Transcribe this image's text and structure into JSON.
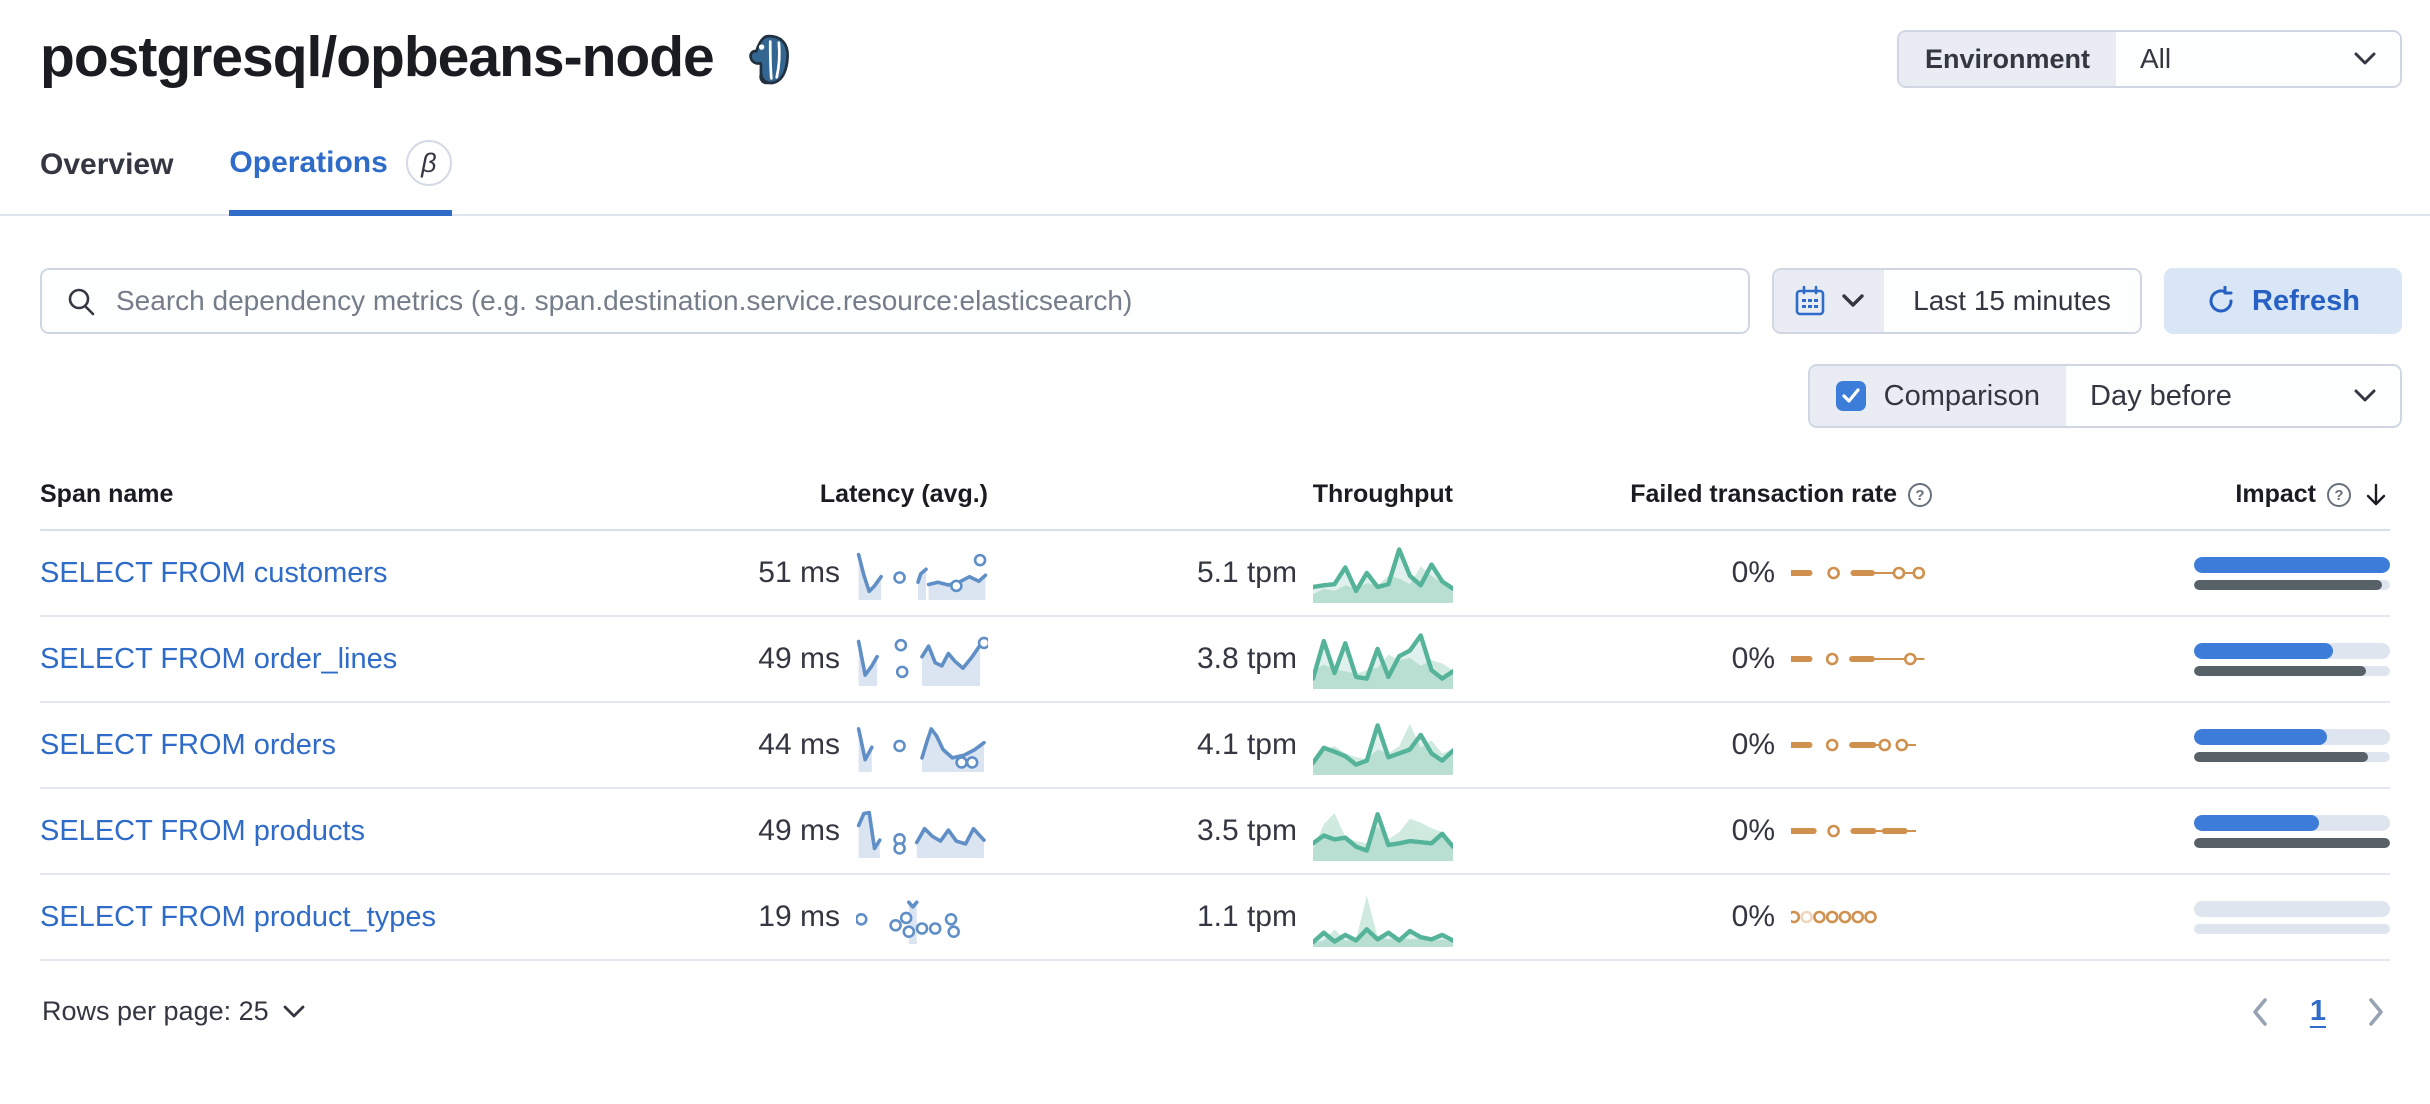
{
  "page": {
    "title": "postgresql/opbeans-node",
    "logo": "postgresql-elephant-icon"
  },
  "environment": {
    "label": "Environment",
    "value": "All"
  },
  "tabs": {
    "overview": "Overview",
    "operations": "Operations",
    "beta": "β"
  },
  "search": {
    "placeholder": "Search dependency metrics (e.g. span.destination.service.resource:elasticsearch)"
  },
  "time_picker": {
    "value": "Last 15 minutes",
    "refresh_label": "Refresh"
  },
  "comparison": {
    "label": "Comparison",
    "checked": true,
    "value": "Day before"
  },
  "table": {
    "headers": {
      "span": "Span name",
      "latency": "Latency (avg.)",
      "throughput": "Throughput",
      "failed": "Failed transaction rate",
      "impact": "Impact"
    },
    "rows": [
      {
        "span": "SELECT FROM customers",
        "latency": "51 ms",
        "throughput": "5.1 tpm",
        "failed": "0%",
        "impact": {
          "current": 1.0,
          "previous": 0.96
        },
        "sparks": {
          "latency": {
            "segments": [
              [
                [
                  0.02,
                  0.9
                ],
                [
                  0.06,
                  0.45
                ],
                [
                  0.1,
                  0.1
                ],
                [
                  0.14,
                  0.22
                ],
                [
                  0.19,
                  0.42
                ]
              ],
              [
                [
                  0.47,
                  0.3
                ],
                [
                  0.49,
                  0.48
                ],
                [
                  0.53,
                  0.58
                ]
              ],
              [
                [
                  0.55,
                  0.25
                ],
                [
                  0.62,
                  0.3
                ],
                [
                  0.7,
                  0.24
                ],
                [
                  0.78,
                  0.3
                ],
                [
                  0.86,
                  0.42
                ],
                [
                  0.93,
                  0.32
                ],
                [
                  0.98,
                  0.45
                ]
              ]
            ],
            "dots": [
              [
                0.33,
                0.4
              ],
              [
                0.76,
                0.22
              ],
              [
                0.94,
                0.78
              ]
            ]
          },
          "throughput": {
            "line": [
              0.25,
              0.28,
              0.3,
              0.6,
              0.18,
              0.5,
              0.25,
              0.3,
              0.92,
              0.45,
              0.28,
              0.65,
              0.35,
              0.22
            ],
            "comparison": [
              0.12,
              0.22,
              0.18,
              0.28,
              0.22,
              0.32,
              0.28,
              0.45,
              0.4,
              0.3,
              0.62,
              0.45,
              0.32,
              0.25
            ]
          },
          "failed": [
            {
              "t": "dash",
              "x0": 0.0,
              "x1": 0.13
            },
            {
              "t": "circle",
              "x": 0.3
            },
            {
              "t": "dash",
              "x0": 0.44,
              "x1": 0.57
            },
            {
              "t": "line",
              "x0": 0.57,
              "x1": 0.74
            },
            {
              "t": "circle",
              "x": 0.76
            },
            {
              "t": "line",
              "x0": 0.8,
              "x1": 0.87
            },
            {
              "t": "circle",
              "x": 0.9
            }
          ]
        }
      },
      {
        "span": "SELECT FROM order_lines",
        "latency": "49 ms",
        "throughput": "3.8 tpm",
        "failed": "0%",
        "impact": {
          "current": 0.71,
          "previous": 0.88
        },
        "sparks": {
          "latency": {
            "segments": [
              [
                [
                  0.02,
                  0.88
                ],
                [
                  0.07,
                  0.15
                ],
                [
                  0.12,
                  0.35
                ],
                [
                  0.16,
                  0.55
                ]
              ],
              [
                [
                  0.5,
                  0.55
                ],
                [
                  0.55,
                  0.78
                ],
                [
                  0.6,
                  0.42
                ],
                [
                  0.65,
                  0.35
                ],
                [
                  0.7,
                  0.62
                ],
                [
                  0.75,
                  0.45
                ],
                [
                  0.81,
                  0.3
                ],
                [
                  0.88,
                  0.55
                ],
                [
                  0.94,
                  0.8
                ]
              ]
            ],
            "dots": [
              [
                0.34,
                0.8
              ],
              [
                0.35,
                0.22
              ],
              [
                0.97,
                0.85
              ]
            ]
          },
          "throughput": {
            "line": [
              0.15,
              0.82,
              0.25,
              0.78,
              0.18,
              0.15,
              0.68,
              0.18,
              0.55,
              0.65,
              0.92,
              0.3,
              0.15,
              0.28
            ],
            "comparison": [
              0.28,
              0.4,
              0.32,
              0.28,
              0.24,
              0.3,
              0.35,
              0.58,
              0.48,
              0.52,
              0.38,
              0.48,
              0.42,
              0.3
            ]
          },
          "failed": [
            {
              "t": "dash",
              "x0": 0.0,
              "x1": 0.13
            },
            {
              "t": "circle",
              "x": 0.29
            },
            {
              "t": "dash",
              "x0": 0.43,
              "x1": 0.57
            },
            {
              "t": "line",
              "x0": 0.57,
              "x1": 0.82
            },
            {
              "t": "circle",
              "x": 0.84
            },
            {
              "t": "line",
              "x0": 0.88,
              "x1": 0.94
            }
          ]
        }
      },
      {
        "span": "SELECT FROM orders",
        "latency": "44 ms",
        "throughput": "4.1 tpm",
        "failed": "0%",
        "impact": {
          "current": 0.68,
          "previous": 0.89
        },
        "sparks": {
          "latency": {
            "segments": [
              [
                [
                  0.02,
                  0.85
                ],
                [
                  0.07,
                  0.18
                ],
                [
                  0.12,
                  0.45
                ]
              ],
              [
                [
                  0.5,
                  0.22
                ],
                [
                  0.54,
                  0.6
                ],
                [
                  0.57,
                  0.85
                ],
                [
                  0.61,
                  0.7
                ],
                [
                  0.66,
                  0.4
                ],
                [
                  0.73,
                  0.22
                ],
                [
                  0.82,
                  0.28
                ],
                [
                  0.9,
                  0.4
                ],
                [
                  0.97,
                  0.55
                ]
              ]
            ],
            "dots": [
              [
                0.33,
                0.48
              ],
              [
                0.8,
                0.12
              ],
              [
                0.88,
                0.12
              ]
            ]
          },
          "throughput": {
            "line": [
              0.18,
              0.45,
              0.38,
              0.3,
              0.15,
              0.22,
              0.85,
              0.28,
              0.35,
              0.42,
              0.68,
              0.35,
              0.22,
              0.4
            ],
            "comparison": [
              0.25,
              0.42,
              0.48,
              0.35,
              0.28,
              0.25,
              0.42,
              0.35,
              0.48,
              0.88,
              0.45,
              0.58,
              0.35,
              0.42
            ]
          },
          "failed": [
            {
              "t": "dash",
              "x0": 0.0,
              "x1": 0.13
            },
            {
              "t": "circle",
              "x": 0.29
            },
            {
              "t": "dash",
              "x0": 0.43,
              "x1": 0.58
            },
            {
              "t": "line",
              "x0": 0.58,
              "x1": 0.64
            },
            {
              "t": "circle",
              "x": 0.66
            },
            {
              "t": "circle",
              "x": 0.78
            },
            {
              "t": "line",
              "x0": 0.82,
              "x1": 0.88
            }
          ]
        }
      },
      {
        "span": "SELECT FROM products",
        "latency": "49 ms",
        "throughput": "3.5 tpm",
        "failed": "0%",
        "impact": {
          "current": 0.64,
          "previous": 1.0
        },
        "sparks": {
          "latency": {
            "segments": [
              [
                [
                  0.02,
                  0.62
                ],
                [
                  0.06,
                  0.88
                ],
                [
                  0.1,
                  0.9
                ],
                [
                  0.14,
                  0.12
                ],
                [
                  0.18,
                  0.3
                ]
              ],
              [
                [
                  0.46,
                  0.25
                ],
                [
                  0.52,
                  0.55
                ],
                [
                  0.58,
                  0.38
                ],
                [
                  0.64,
                  0.28
                ],
                [
                  0.7,
                  0.52
                ],
                [
                  0.76,
                  0.28
                ],
                [
                  0.83,
                  0.22
                ],
                [
                  0.89,
                  0.55
                ],
                [
                  0.97,
                  0.3
                ]
              ]
            ],
            "dots": [
              [
                0.33,
                0.32
              ],
              [
                0.33,
                0.12
              ]
            ]
          },
          "throughput": {
            "line": [
              0.28,
              0.42,
              0.35,
              0.38,
              0.22,
              0.15,
              0.8,
              0.25,
              0.28,
              0.32,
              0.3,
              0.28,
              0.45,
              0.22
            ],
            "comparison": [
              0.18,
              0.62,
              0.82,
              0.4,
              0.32,
              0.28,
              0.58,
              0.35,
              0.48,
              0.72,
              0.65,
              0.55,
              0.48,
              0.28
            ]
          },
          "failed": [
            {
              "t": "dash",
              "x0": 0.0,
              "x1": 0.16
            },
            {
              "t": "circle",
              "x": 0.3
            },
            {
              "t": "dash",
              "x0": 0.44,
              "x1": 0.58
            },
            {
              "t": "line",
              "x0": 0.58,
              "x1": 0.66
            },
            {
              "t": "dash",
              "x0": 0.66,
              "x1": 0.8
            },
            {
              "t": "line",
              "x0": 0.8,
              "x1": 0.88
            }
          ]
        }
      },
      {
        "span": "SELECT FROM product_types",
        "latency": "19 ms",
        "throughput": "1.1 tpm",
        "failed": "0%",
        "impact": {
          "current": 0.0,
          "previous": 0.0
        },
        "sparks": {
          "latency": {
            "segments": [
              [
                [
                  0.4,
                  0.82
                ],
                [
                  0.43,
                  0.72
                ],
                [
                  0.46,
                  0.82
                ]
              ]
            ],
            "dots": [
              [
                0.04,
                0.45
              ],
              [
                0.3,
                0.32
              ],
              [
                0.38,
                0.48
              ],
              [
                0.4,
                0.18
              ],
              [
                0.5,
                0.25
              ],
              [
                0.6,
                0.25
              ],
              [
                0.72,
                0.45
              ],
              [
                0.74,
                0.18
              ]
            ]
          },
          "throughput": {
            "line": [
              0.05,
              0.22,
              0.06,
              0.18,
              0.08,
              0.28,
              0.1,
              0.22,
              0.08,
              0.25,
              0.14,
              0.1,
              0.18,
              0.08
            ],
            "comparison": [
              0.04,
              0.08,
              0.28,
              0.08,
              0.1,
              0.88,
              0.15,
              0.1,
              0.14,
              0.1,
              0.12,
              0.08,
              0.1,
              0.05
            ]
          },
          "failed": [
            {
              "t": "circle",
              "x": 0.02
            },
            {
              "t": "circle",
              "x": 0.11,
              "faint": true
            },
            {
              "t": "circle",
              "x": 0.2
            },
            {
              "t": "circle",
              "x": 0.29
            },
            {
              "t": "circle",
              "x": 0.38
            },
            {
              "t": "circle",
              "x": 0.47
            },
            {
              "t": "circle",
              "x": 0.56
            }
          ]
        }
      }
    ]
  },
  "pagination": {
    "rows_per_page_label": "Rows per page: 25",
    "page": "1"
  },
  "colors": {
    "link_blue": "#2f6bc8",
    "impact_blue": "#3d7dd9",
    "impact_gray": "#596168",
    "latency_blue": "#5f8fc6",
    "latency_fill": "#dbe4f1",
    "throughput_green": "#54b399",
    "throughput_fill": "#54b399",
    "comparison_fill": "#a9d8c6",
    "failed_orange": "#d0904e"
  }
}
